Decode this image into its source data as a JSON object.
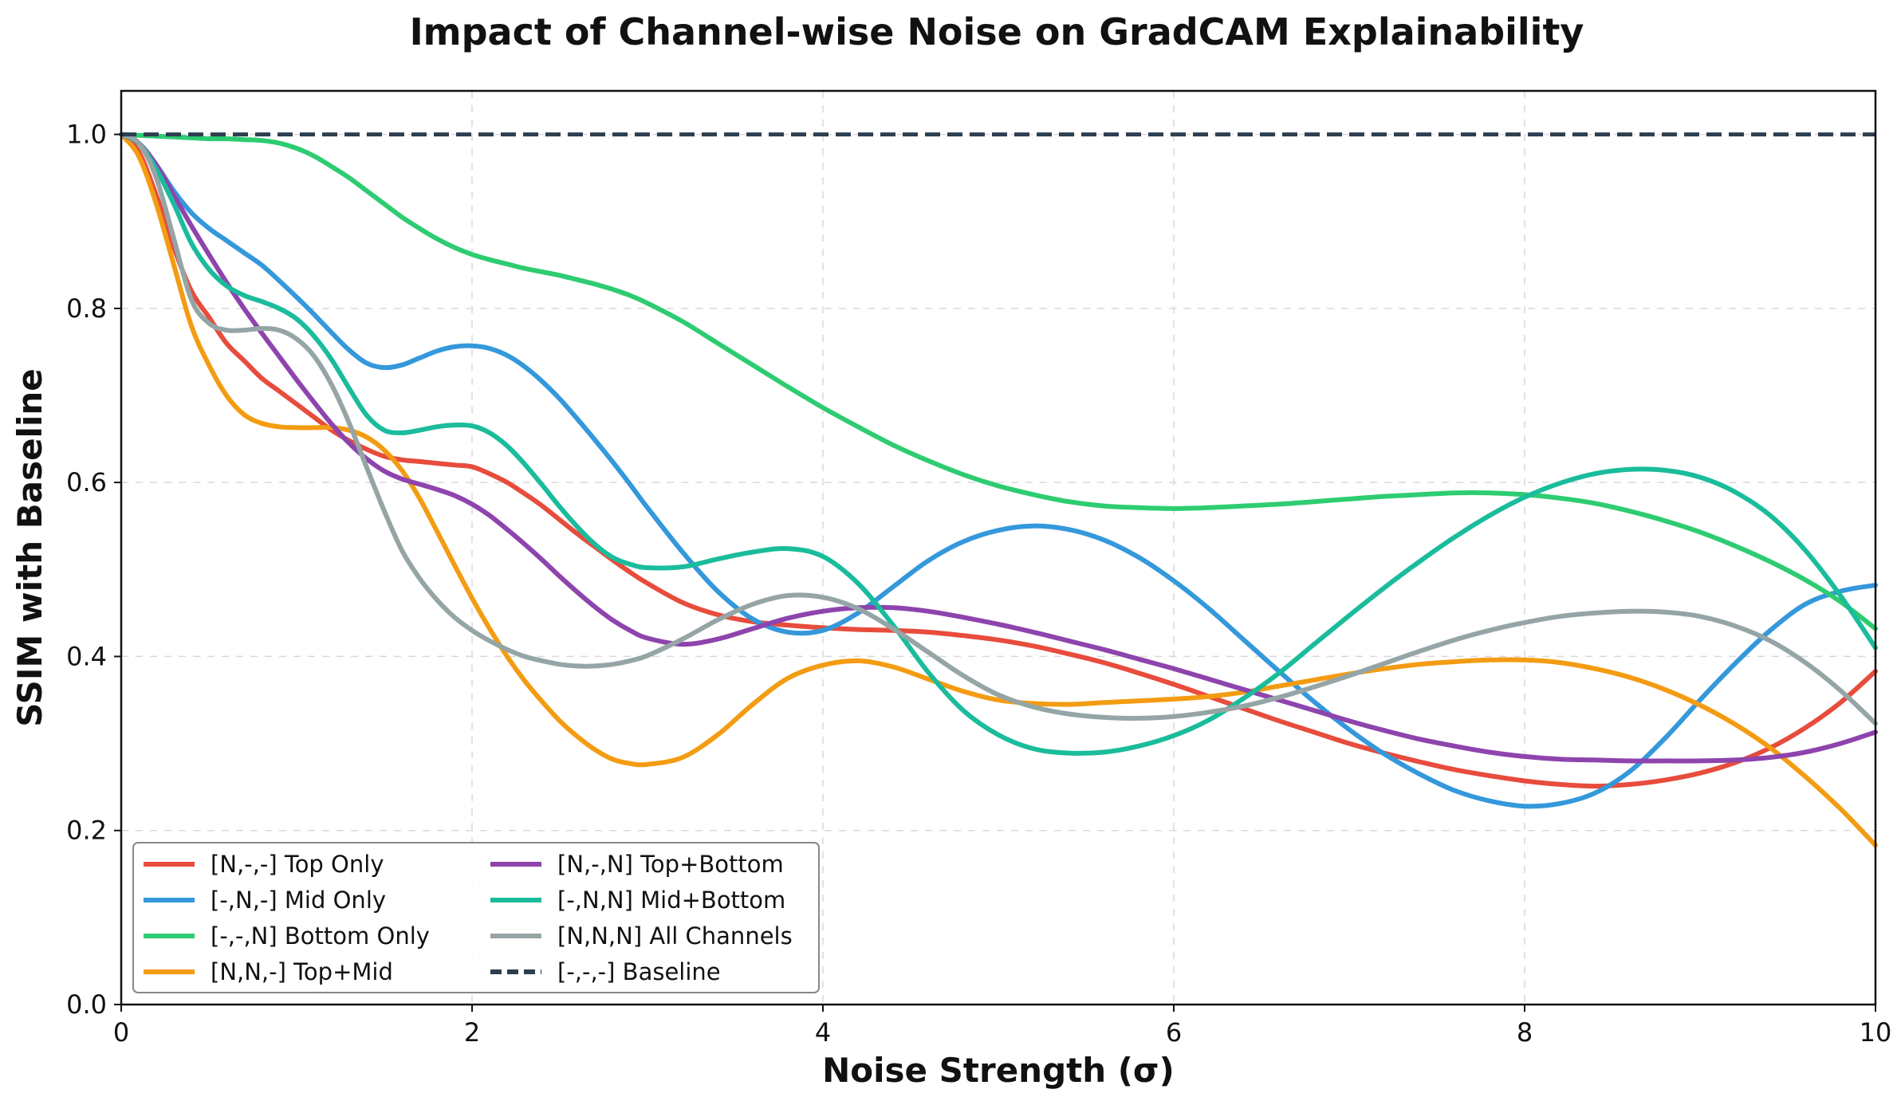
{
  "chart_data": {
    "type": "line",
    "title": "Impact of Channel-wise Noise on GradCAM Explainability",
    "xlabel": "Noise Strength (σ)",
    "ylabel": "SSIM with Baseline",
    "xlim": [
      0,
      10
    ],
    "ylim": [
      0,
      1.05
    ],
    "xticks": [
      0,
      2,
      4,
      6,
      8,
      10
    ],
    "yticks": [
      0.0,
      0.2,
      0.4,
      0.6,
      0.8,
      1.0
    ],
    "xtick_labels": [
      "0",
      "2",
      "4",
      "6",
      "8",
      "10"
    ],
    "ytick_labels": [
      "0.0",
      "0.2",
      "0.4",
      "0.6",
      "0.8",
      "1.0"
    ],
    "grid": true,
    "legend_position": "lower-left",
    "x": [
      0,
      0.1,
      0.2,
      0.3,
      0.4,
      0.5,
      0.6,
      0.7,
      0.8,
      0.9,
      1.0,
      1.1,
      1.2,
      1.3,
      1.4,
      1.5,
      1.6,
      1.7,
      1.8,
      1.9,
      2.0,
      2.1,
      2.2,
      2.3,
      2.4,
      2.5,
      2.6,
      2.7,
      2.8,
      2.9,
      3.0,
      3.2,
      3.4,
      3.6,
      3.8,
      4.0,
      4.2,
      4.4,
      4.6,
      4.8,
      5.0,
      5.2,
      5.4,
      5.6,
      5.8,
      6.0,
      6.2,
      6.4,
      6.6,
      6.8,
      7.0,
      7.2,
      7.4,
      7.6,
      7.8,
      8.0,
      8.2,
      8.4,
      8.6,
      8.8,
      9.0,
      9.2,
      9.4,
      9.6,
      9.8,
      10.0
    ],
    "series": [
      {
        "name": "[N,-,-] Top Only",
        "color": "#e74c3c",
        "dash": "solid",
        "values": [
          1.0,
          0.98,
          0.93,
          0.87,
          0.82,
          0.79,
          0.76,
          0.74,
          0.72,
          0.705,
          0.69,
          0.675,
          0.66,
          0.648,
          0.638,
          0.63,
          0.626,
          0.624,
          0.622,
          0.62,
          0.618,
          0.61,
          0.6,
          0.587,
          0.573,
          0.557,
          0.541,
          0.526,
          0.511,
          0.497,
          0.484,
          0.462,
          0.448,
          0.44,
          0.436,
          0.433,
          0.431,
          0.43,
          0.428,
          0.424,
          0.419,
          0.412,
          0.403,
          0.393,
          0.381,
          0.368,
          0.354,
          0.34,
          0.326,
          0.313,
          0.3,
          0.289,
          0.279,
          0.27,
          0.263,
          0.257,
          0.253,
          0.251,
          0.253,
          0.258,
          0.266,
          0.278,
          0.295,
          0.318,
          0.347,
          0.383
        ]
      },
      {
        "name": "[-,N,-] Mid Only",
        "color": "#3498db",
        "dash": "solid",
        "values": [
          1.0,
          0.99,
          0.965,
          0.935,
          0.91,
          0.892,
          0.878,
          0.864,
          0.85,
          0.832,
          0.813,
          0.793,
          0.772,
          0.752,
          0.737,
          0.732,
          0.735,
          0.743,
          0.751,
          0.756,
          0.757,
          0.754,
          0.746,
          0.733,
          0.716,
          0.696,
          0.673,
          0.649,
          0.624,
          0.598,
          0.571,
          0.52,
          0.475,
          0.443,
          0.428,
          0.43,
          0.45,
          0.48,
          0.51,
          0.532,
          0.545,
          0.55,
          0.546,
          0.534,
          0.514,
          0.487,
          0.455,
          0.419,
          0.383,
          0.348,
          0.316,
          0.288,
          0.265,
          0.246,
          0.234,
          0.228,
          0.231,
          0.243,
          0.268,
          0.306,
          0.35,
          0.392,
          0.43,
          0.46,
          0.475,
          0.482
        ]
      },
      {
        "name": "[-,-,N] Bottom Only",
        "color": "#2ecc71",
        "dash": "solid",
        "values": [
          1.0,
          0.999,
          0.998,
          0.997,
          0.996,
          0.995,
          0.995,
          0.994,
          0.993,
          0.99,
          0.984,
          0.975,
          0.963,
          0.95,
          0.935,
          0.92,
          0.905,
          0.892,
          0.88,
          0.87,
          0.862,
          0.856,
          0.851,
          0.846,
          0.842,
          0.838,
          0.833,
          0.828,
          0.822,
          0.815,
          0.806,
          0.785,
          0.76,
          0.735,
          0.71,
          0.686,
          0.664,
          0.643,
          0.625,
          0.609,
          0.596,
          0.586,
          0.578,
          0.573,
          0.571,
          0.57,
          0.571,
          0.573,
          0.575,
          0.578,
          0.581,
          0.584,
          0.586,
          0.588,
          0.588,
          0.586,
          0.582,
          0.576,
          0.567,
          0.556,
          0.543,
          0.527,
          0.509,
          0.488,
          0.463,
          0.432
        ]
      },
      {
        "name": "[N,N,-] Top+Mid",
        "color": "#f39c12",
        "dash": "solid",
        "values": [
          1.0,
          0.975,
          0.92,
          0.85,
          0.78,
          0.735,
          0.7,
          0.678,
          0.668,
          0.664,
          0.663,
          0.663,
          0.663,
          0.66,
          0.652,
          0.637,
          0.614,
          0.582,
          0.544,
          0.505,
          0.467,
          0.432,
          0.4,
          0.372,
          0.348,
          0.326,
          0.308,
          0.293,
          0.282,
          0.277,
          0.276,
          0.284,
          0.31,
          0.345,
          0.375,
          0.39,
          0.395,
          0.388,
          0.374,
          0.36,
          0.35,
          0.346,
          0.345,
          0.347,
          0.349,
          0.351,
          0.354,
          0.359,
          0.366,
          0.373,
          0.38,
          0.386,
          0.391,
          0.394,
          0.396,
          0.396,
          0.393,
          0.386,
          0.376,
          0.362,
          0.344,
          0.322,
          0.295,
          0.262,
          0.225,
          0.183
        ]
      },
      {
        "name": "[N,-,N] Top+Bottom",
        "color": "#8e44ad",
        "dash": "solid",
        "values": [
          1.0,
          0.99,
          0.965,
          0.93,
          0.895,
          0.862,
          0.83,
          0.8,
          0.772,
          0.745,
          0.718,
          0.692,
          0.667,
          0.645,
          0.627,
          0.613,
          0.604,
          0.598,
          0.592,
          0.585,
          0.575,
          0.562,
          0.546,
          0.529,
          0.511,
          0.492,
          0.474,
          0.457,
          0.442,
          0.43,
          0.421,
          0.414,
          0.42,
          0.432,
          0.444,
          0.452,
          0.456,
          0.456,
          0.452,
          0.445,
          0.437,
          0.428,
          0.418,
          0.408,
          0.397,
          0.386,
          0.374,
          0.362,
          0.35,
          0.338,
          0.326,
          0.315,
          0.305,
          0.297,
          0.29,
          0.285,
          0.282,
          0.281,
          0.28,
          0.28,
          0.28,
          0.281,
          0.284,
          0.29,
          0.3,
          0.313
        ]
      },
      {
        "name": "[-,N,N] Mid+Bottom",
        "color": "#1abc9c",
        "dash": "solid",
        "values": [
          1.0,
          0.99,
          0.96,
          0.92,
          0.875,
          0.845,
          0.826,
          0.815,
          0.808,
          0.8,
          0.788,
          0.768,
          0.741,
          0.708,
          0.677,
          0.66,
          0.657,
          0.66,
          0.664,
          0.666,
          0.665,
          0.657,
          0.642,
          0.621,
          0.597,
          0.572,
          0.549,
          0.529,
          0.514,
          0.506,
          0.502,
          0.503,
          0.512,
          0.52,
          0.524,
          0.515,
          0.484,
          0.436,
          0.382,
          0.338,
          0.31,
          0.294,
          0.289,
          0.29,
          0.297,
          0.309,
          0.327,
          0.352,
          0.381,
          0.414,
          0.447,
          0.479,
          0.509,
          0.537,
          0.562,
          0.583,
          0.599,
          0.61,
          0.615,
          0.614,
          0.606,
          0.589,
          0.562,
          0.522,
          0.47,
          0.41
        ]
      },
      {
        "name": "[N,N,N] All Channels",
        "color": "#95a5a6",
        "dash": "solid",
        "values": [
          1.0,
          0.99,
          0.95,
          0.88,
          0.81,
          0.783,
          0.775,
          0.775,
          0.777,
          0.775,
          0.765,
          0.745,
          0.712,
          0.668,
          0.617,
          0.567,
          0.522,
          0.49,
          0.465,
          0.445,
          0.43,
          0.418,
          0.408,
          0.4,
          0.395,
          0.391,
          0.389,
          0.389,
          0.391,
          0.395,
          0.401,
          0.42,
          0.442,
          0.46,
          0.47,
          0.468,
          0.455,
          0.432,
          0.405,
          0.378,
          0.356,
          0.342,
          0.334,
          0.33,
          0.329,
          0.331,
          0.336,
          0.343,
          0.353,
          0.365,
          0.378,
          0.392,
          0.406,
          0.419,
          0.43,
          0.439,
          0.446,
          0.45,
          0.452,
          0.451,
          0.446,
          0.435,
          0.418,
          0.393,
          0.361,
          0.323
        ]
      },
      {
        "name": "[-,-,-] Baseline",
        "color": "#2c3e50",
        "dash": "dashed",
        "values": [
          1.0,
          1.0,
          1.0,
          1.0,
          1.0,
          1.0,
          1.0,
          1.0,
          1.0,
          1.0,
          1.0,
          1.0,
          1.0,
          1.0,
          1.0,
          1.0,
          1.0,
          1.0,
          1.0,
          1.0,
          1.0,
          1.0,
          1.0,
          1.0,
          1.0,
          1.0,
          1.0,
          1.0,
          1.0,
          1.0,
          1.0,
          1.0,
          1.0,
          1.0,
          1.0,
          1.0,
          1.0,
          1.0,
          1.0,
          1.0,
          1.0,
          1.0,
          1.0,
          1.0,
          1.0,
          1.0,
          1.0,
          1.0,
          1.0,
          1.0,
          1.0,
          1.0,
          1.0,
          1.0,
          1.0,
          1.0,
          1.0,
          1.0,
          1.0,
          1.0,
          1.0,
          1.0,
          1.0,
          1.0,
          1.0,
          1.0
        ]
      }
    ]
  }
}
